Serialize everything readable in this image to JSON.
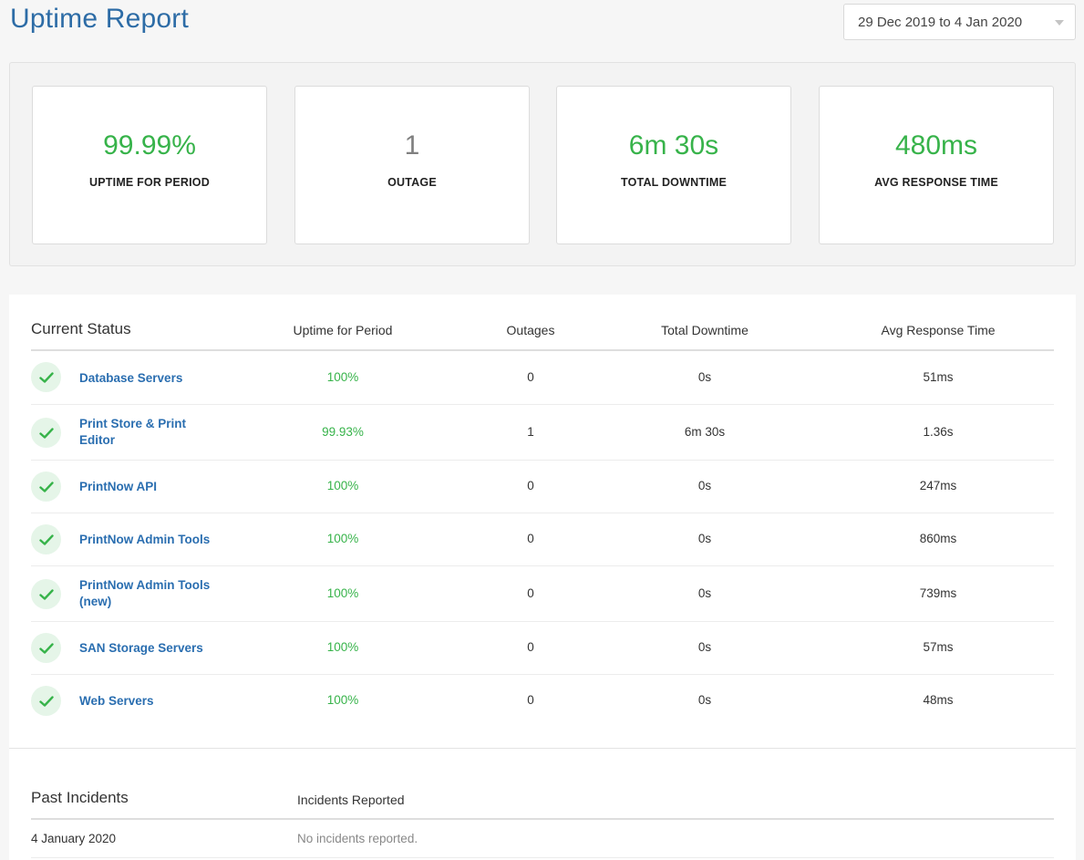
{
  "page": {
    "title": "Uptime Report",
    "date_range": "29 Dec 2019 to 4 Jan 2020"
  },
  "summary": [
    {
      "value": "99.99%",
      "label": "UPTIME FOR PERIOD",
      "color": "#37b34a"
    },
    {
      "value": "1",
      "label": "OUTAGE",
      "color": "#808080"
    },
    {
      "value": "6m 30s",
      "label": "TOTAL DOWNTIME",
      "color": "#37b34a"
    },
    {
      "value": "480ms",
      "label": "AVG RESPONSE TIME",
      "color": "#37b34a"
    }
  ],
  "current_status": {
    "title": "Current Status",
    "columns": [
      "Uptime for Period",
      "Outages",
      "Total Downtime",
      "Avg Response Time"
    ],
    "rows": [
      {
        "name": "Database Servers",
        "uptime": "100%",
        "outages": "0",
        "downtime": "0s",
        "response": "51ms",
        "status_icon": "check-icon"
      },
      {
        "name": "Print Store & Print Editor",
        "uptime": "99.93%",
        "outages": "1",
        "downtime": "6m 30s",
        "response": "1.36s",
        "status_icon": "check-icon"
      },
      {
        "name": "PrintNow API",
        "uptime": "100%",
        "outages": "0",
        "downtime": "0s",
        "response": "247ms",
        "status_icon": "check-icon"
      },
      {
        "name": "PrintNow Admin Tools",
        "uptime": "100%",
        "outages": "0",
        "downtime": "0s",
        "response": "860ms",
        "status_icon": "check-icon"
      },
      {
        "name": "PrintNow Admin Tools (new)",
        "uptime": "100%",
        "outages": "0",
        "downtime": "0s",
        "response": "739ms",
        "status_icon": "check-icon"
      },
      {
        "name": "SAN Storage Servers",
        "uptime": "100%",
        "outages": "0",
        "downtime": "0s",
        "response": "57ms",
        "status_icon": "check-icon"
      },
      {
        "name": "Web Servers",
        "uptime": "100%",
        "outages": "0",
        "downtime": "0s",
        "response": "48ms",
        "status_icon": "check-icon"
      }
    ]
  },
  "past_incidents": {
    "title": "Past Incidents",
    "column": "Incidents Reported",
    "rows": [
      {
        "date": "4 January 2020",
        "text": "No incidents reported."
      }
    ]
  },
  "colors": {
    "title_blue": "#2d6ca6",
    "link_blue": "#2a6eb0",
    "success_green": "#37b34a",
    "check_bg": "#e5f5e8"
  }
}
